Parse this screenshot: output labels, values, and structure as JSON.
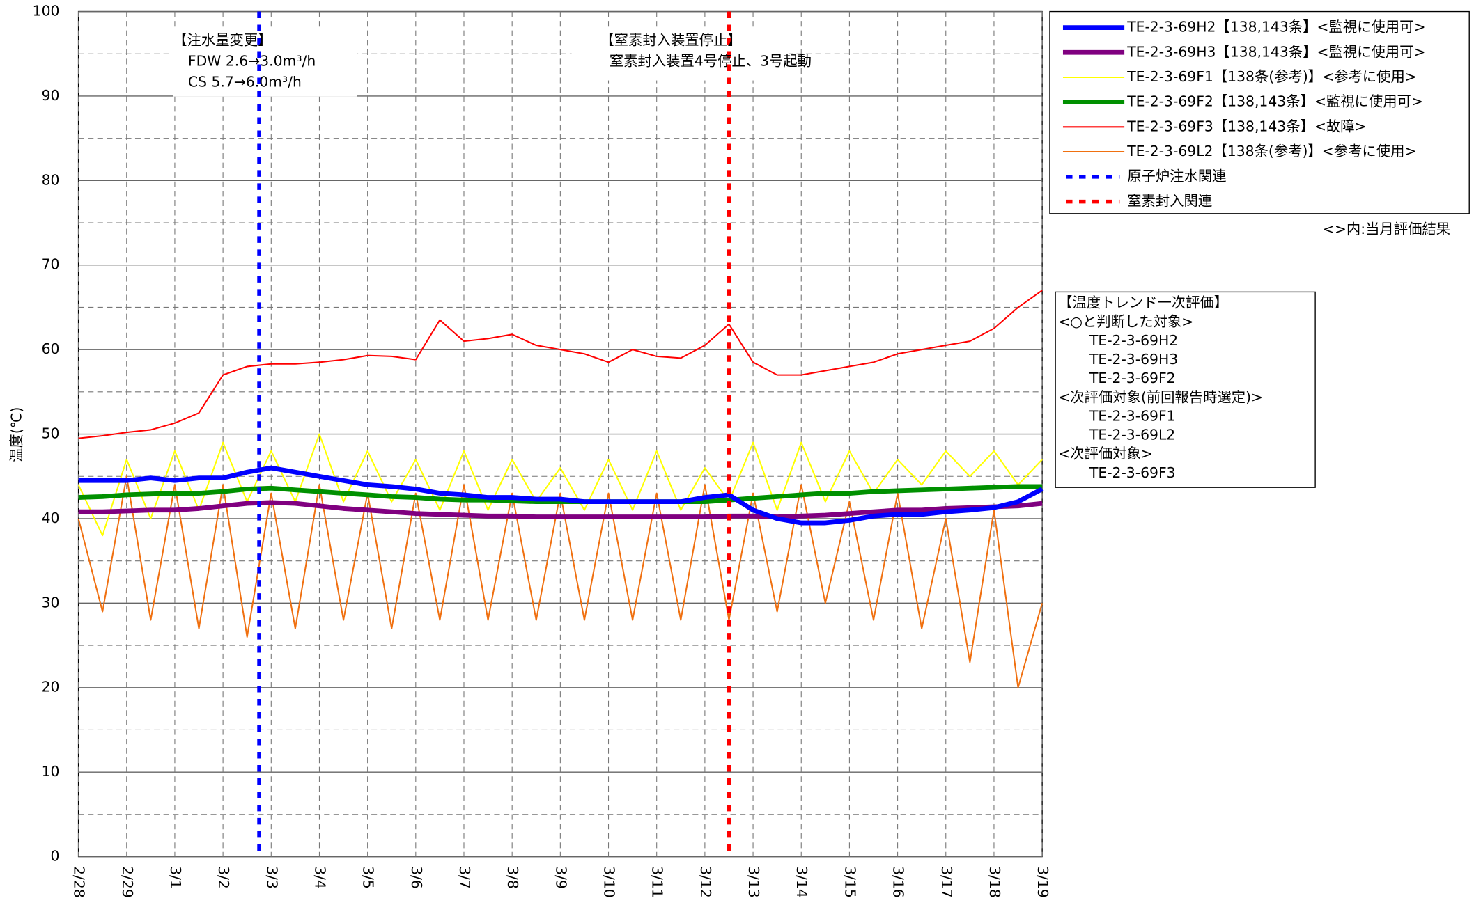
{
  "chart_data": {
    "type": "line",
    "ylabel": "温度(℃)",
    "x": [
      0,
      0.5,
      1,
      1.5,
      2,
      2.5,
      3,
      3.5,
      4,
      4.5,
      5,
      5.5,
      6,
      6.5,
      7,
      7.5,
      8,
      8.5,
      9,
      9.5,
      10,
      10.5,
      11,
      11.5,
      12,
      12.5,
      13,
      13.5,
      14,
      14.5,
      15,
      15.5,
      16,
      16.5,
      17,
      17.5,
      18,
      18.5,
      19,
      19.5,
      20
    ],
    "xlim": [
      0,
      20
    ],
    "xticks": [
      {
        "value": 0,
        "label": "2/28"
      },
      {
        "value": 1,
        "label": "2/29"
      },
      {
        "value": 2,
        "label": "3/1"
      },
      {
        "value": 3,
        "label": "3/2"
      },
      {
        "value": 4,
        "label": "3/3"
      },
      {
        "value": 5,
        "label": "3/4"
      },
      {
        "value": 6,
        "label": "3/5"
      },
      {
        "value": 7,
        "label": "3/6"
      },
      {
        "value": 8,
        "label": "3/7"
      },
      {
        "value": 9,
        "label": "3/8"
      },
      {
        "value": 10,
        "label": "3/9"
      },
      {
        "value": 11,
        "label": "3/10"
      },
      {
        "value": 12,
        "label": "3/11"
      },
      {
        "value": 13,
        "label": "3/12"
      },
      {
        "value": 14,
        "label": "3/13"
      },
      {
        "value": 15,
        "label": "3/14"
      },
      {
        "value": 16,
        "label": "3/15"
      },
      {
        "value": 17,
        "label": "3/16"
      },
      {
        "value": 18,
        "label": "3/17"
      },
      {
        "value": 19,
        "label": "3/18"
      },
      {
        "value": 20,
        "label": "3/19"
      }
    ],
    "ylim": [
      0,
      100
    ],
    "yticks": [
      0,
      10,
      20,
      30,
      40,
      50,
      60,
      70,
      80,
      90,
      100
    ],
    "yminor": [
      5,
      15,
      25,
      35,
      45,
      55,
      65,
      75,
      85,
      95
    ],
    "grid": true,
    "series": [
      {
        "name": "TE-2-3-69H2【138,143条】<監視に使用可>",
        "color": "#0000ff",
        "width": 5,
        "values": [
          44.5,
          44.5,
          44.5,
          44.8,
          44.5,
          44.8,
          44.8,
          45.5,
          46,
          45.5,
          45,
          44.5,
          44,
          43.8,
          43.5,
          43,
          42.8,
          42.5,
          42.5,
          42.3,
          42.3,
          42,
          42,
          42,
          42,
          42,
          42.5,
          42.8,
          41,
          40,
          39.5,
          39.5,
          39.8,
          40.3,
          40.5,
          40.5,
          40.8,
          41,
          41.3,
          42,
          43.5
        ]
      },
      {
        "name": "TE-2-3-69H3【138,143条】<監視に使用可>",
        "color": "#800080",
        "width": 5,
        "values": [
          40.8,
          40.8,
          40.9,
          41,
          41,
          41.2,
          41.5,
          41.8,
          41.9,
          41.8,
          41.5,
          41.2,
          41,
          40.8,
          40.6,
          40.5,
          40.4,
          40.3,
          40.3,
          40.2,
          40.2,
          40.2,
          40.2,
          40.2,
          40.2,
          40.2,
          40.2,
          40.3,
          40.3,
          40.2,
          40.3,
          40.4,
          40.6,
          40.8,
          41,
          41,
          41.2,
          41.3,
          41.4,
          41.5,
          41.8
        ]
      },
      {
        "name": "TE-2-3-69F1【138条(参考)】<参考に使用>",
        "color": "#ffff00",
        "width": 1.5,
        "values": [
          44,
          38,
          47,
          40,
          48,
          41,
          49,
          42,
          48,
          42,
          50,
          42,
          48,
          42,
          47,
          41,
          48,
          41,
          47,
          42,
          46,
          41,
          47,
          41,
          48,
          41,
          46,
          42,
          49,
          41,
          49,
          42,
          48,
          43,
          47,
          44,
          48,
          45,
          48,
          44,
          47
        ]
      },
      {
        "name": "TE-2-3-69F2【138,143条】<監視に使用可>",
        "color": "#009000",
        "width": 5,
        "values": [
          42.5,
          42.6,
          42.8,
          42.9,
          43,
          43,
          43.2,
          43.5,
          43.6,
          43.4,
          43.2,
          43,
          42.8,
          42.6,
          42.5,
          42.3,
          42.2,
          42.2,
          42.1,
          42,
          42,
          42,
          42,
          42,
          42,
          42,
          42,
          42.2,
          42.4,
          42.6,
          42.8,
          43,
          43,
          43.2,
          43.3,
          43.4,
          43.5,
          43.6,
          43.7,
          43.8,
          43.8
        ]
      },
      {
        "name": "TE-2-3-69F3【138,143条】<故障>",
        "color": "#ff0000",
        "width": 1.5,
        "values": [
          49.5,
          49.8,
          50.2,
          50.5,
          51.3,
          52.5,
          57,
          58,
          58.3,
          58.3,
          58.5,
          58.8,
          59.3,
          59.2,
          58.8,
          63.5,
          61,
          61.3,
          61.8,
          60.5,
          60,
          59.5,
          58.5,
          60,
          59.2,
          59,
          60.5,
          63,
          58.5,
          57,
          57,
          57.5,
          58,
          58.5,
          59.5,
          60,
          60.5,
          61,
          62.5,
          65,
          67
        ]
      },
      {
        "name": "TE-2-3-69L2【138条(参考)】<参考に使用>",
        "color": "#f07010",
        "width": 1.5,
        "values": [
          40,
          29,
          45,
          28,
          44,
          27,
          44,
          26,
          43,
          27,
          44,
          28,
          43,
          27,
          43,
          28,
          44,
          28,
          43,
          28,
          43,
          28,
          43,
          28,
          43,
          28,
          44,
          28,
          43,
          29,
          44,
          30,
          42,
          28,
          43,
          27,
          40,
          23,
          41,
          20,
          30
        ]
      }
    ],
    "events": [
      {
        "name": "原子炉注水関連",
        "x": 3.75,
        "color": "#0000ff",
        "note": [
          "【注水量変更】",
          "FDW  2.6→3.0m³/h",
          "CS   5.7→6.0m³/h"
        ]
      },
      {
        "name": "窒素封入関連",
        "x": 13.5,
        "color": "#ff0000",
        "note": [
          "【窒素封入装置停止】",
          "窒素封入装置4号停止、3号起動"
        ]
      }
    ],
    "legend_note": "<>内:当月評価結果",
    "eval_box": {
      "title": "【温度トレンド一次評価】",
      "groups": [
        {
          "heading": "<○と判断した対象>",
          "items": [
            "TE-2-3-69H2",
            "TE-2-3-69H3",
            "TE-2-3-69F2"
          ]
        },
        {
          "heading": "<次評価対象(前回報告時選定)>",
          "items": [
            "TE-2-3-69F1",
            "TE-2-3-69L2"
          ]
        },
        {
          "heading": "<次評価対象>",
          "items": [
            "TE-2-3-69F3"
          ]
        }
      ]
    }
  }
}
